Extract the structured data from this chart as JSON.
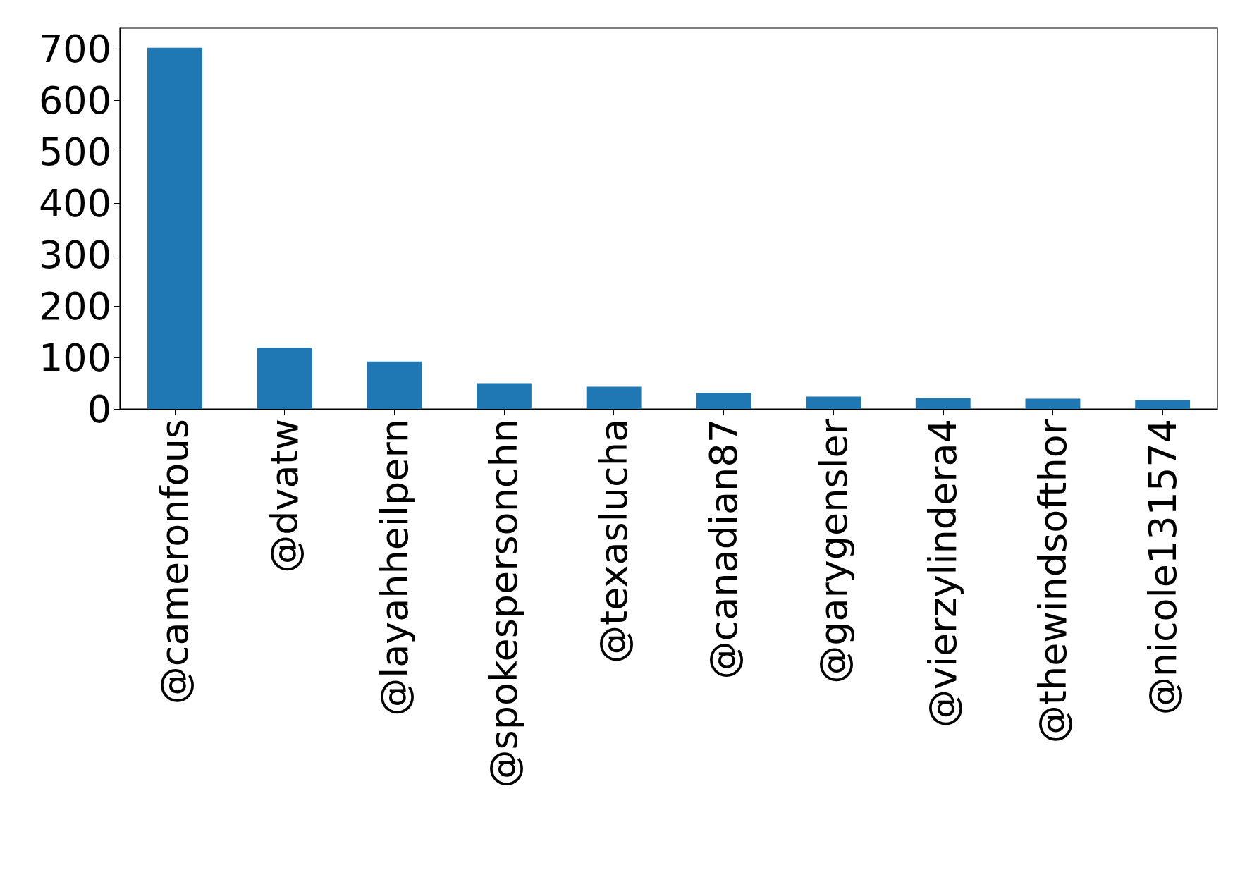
{
  "chart_data": {
    "type": "bar",
    "categories": [
      "@cameronfous",
      "@dvatw",
      "@layahheilpern",
      "@spokespersonchn",
      "@texaslucha",
      "@canadian87",
      "@garygensler",
      "@vierzylindera4",
      "@thewindsofthor",
      "@nicole131574"
    ],
    "values": [
      702,
      119,
      92,
      50,
      43,
      31,
      24,
      21,
      20,
      17
    ],
    "color": "#1f77b4",
    "ylim": [
      0,
      740
    ],
    "yticks": [
      0,
      100,
      200,
      300,
      400,
      500,
      600,
      700
    ],
    "grid": false
  }
}
